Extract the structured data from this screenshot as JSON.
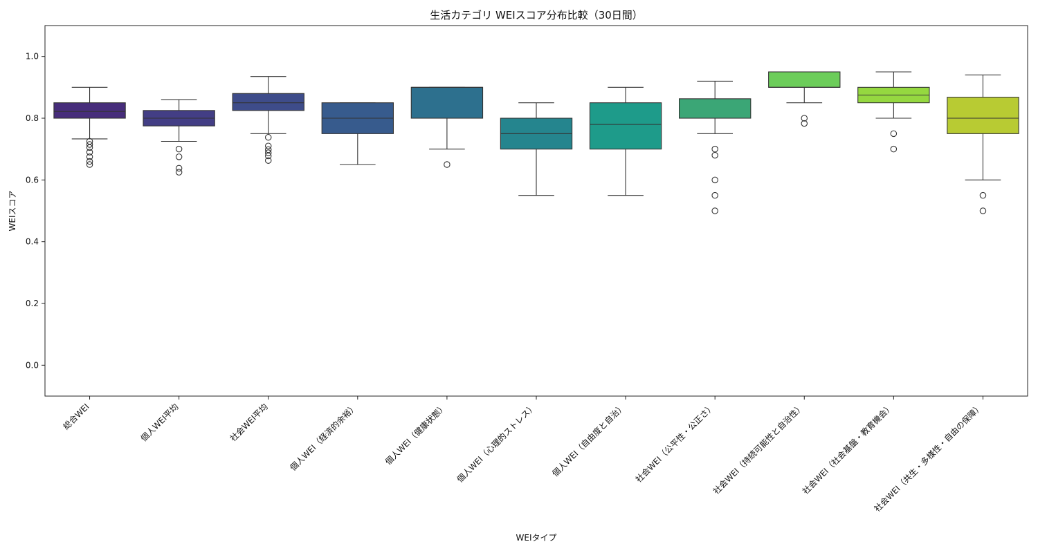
{
  "chart_data": {
    "type": "box",
    "title": "生活カテゴリ WEIスコア分布比較（30日間）",
    "xlabel": "WEIタイプ",
    "ylabel": "WEIスコア",
    "ylim": [
      -0.1,
      1.1
    ],
    "yticks": [
      "0.0",
      "0.2",
      "0.4",
      "0.6",
      "0.8",
      "1.0"
    ],
    "yticks_values": [
      0.0,
      0.2,
      0.4,
      0.6,
      0.8,
      1.0
    ],
    "grid": false,
    "categories": [
      "総合WEI",
      "個人WEI平均",
      "社会WEI平均",
      "個人WEI（経済的余裕）",
      "個人WEI（健康状態）",
      "個人WEI（心理的ストレス）",
      "個人WEI（自由度と自治）",
      "社会WEI（公平性・公正さ）",
      "社会WEI（持続可能性と自治性）",
      "社会WEI（社会基盤・教育機会）",
      "社会WEI（共生・多様性・自由の保障）"
    ],
    "boxes": [
      {
        "whislo": 0.733,
        "q1": 0.8,
        "med": 0.822,
        "q3": 0.85,
        "whishi": 0.9,
        "fliers": [
          0.725,
          0.715,
          0.705,
          0.69,
          0.675,
          0.66,
          0.65
        ],
        "color": "#472d7b"
      },
      {
        "whislo": 0.725,
        "q1": 0.775,
        "med": 0.8,
        "q3": 0.825,
        "whishi": 0.86,
        "fliers": [
          0.7,
          0.675,
          0.638,
          0.625
        ],
        "color": "#433e85"
      },
      {
        "whislo": 0.75,
        "q1": 0.825,
        "med": 0.85,
        "q3": 0.88,
        "whishi": 0.935,
        "fliers": [
          0.738,
          0.71,
          0.698,
          0.688,
          0.678,
          0.663
        ],
        "color": "#3e4c8a"
      },
      {
        "whislo": 0.65,
        "q1": 0.75,
        "med": 0.8,
        "q3": 0.85,
        "whishi": 0.85,
        "fliers": [],
        "color": "#375b8d"
      },
      {
        "whislo": 0.7,
        "q1": 0.8,
        "med": 0.9,
        "q3": 0.9,
        "whishi": 0.9,
        "fliers": [
          0.65
        ],
        "color": "#2d708e"
      },
      {
        "whislo": 0.55,
        "q1": 0.7,
        "med": 0.75,
        "q3": 0.8,
        "whishi": 0.85,
        "fliers": [],
        "color": "#25858e"
      },
      {
        "whislo": 0.55,
        "q1": 0.7,
        "med": 0.78,
        "q3": 0.85,
        "whishi": 0.9,
        "fliers": [],
        "color": "#1e9b8a"
      },
      {
        "whislo": 0.75,
        "q1": 0.8,
        "med": 0.8,
        "q3": 0.863,
        "whishi": 0.92,
        "fliers": [
          0.7,
          0.68,
          0.6,
          0.55,
          0.5
        ],
        "color": "#3ba676"
      },
      {
        "whislo": 0.85,
        "q1": 0.9,
        "med": 0.9,
        "q3": 0.95,
        "whishi": 0.95,
        "fliers": [
          0.8,
          0.783
        ],
        "color": "#6ccd5a"
      },
      {
        "whislo": 0.8,
        "q1": 0.85,
        "med": 0.875,
        "q3": 0.9,
        "whishi": 0.95,
        "fliers": [
          0.75,
          0.7
        ],
        "color": "#95d840"
      },
      {
        "whislo": 0.6,
        "q1": 0.75,
        "med": 0.8,
        "q3": 0.868,
        "whishi": 0.94,
        "fliers": [
          0.55,
          0.5
        ],
        "color": "#b8cb33"
      }
    ]
  }
}
